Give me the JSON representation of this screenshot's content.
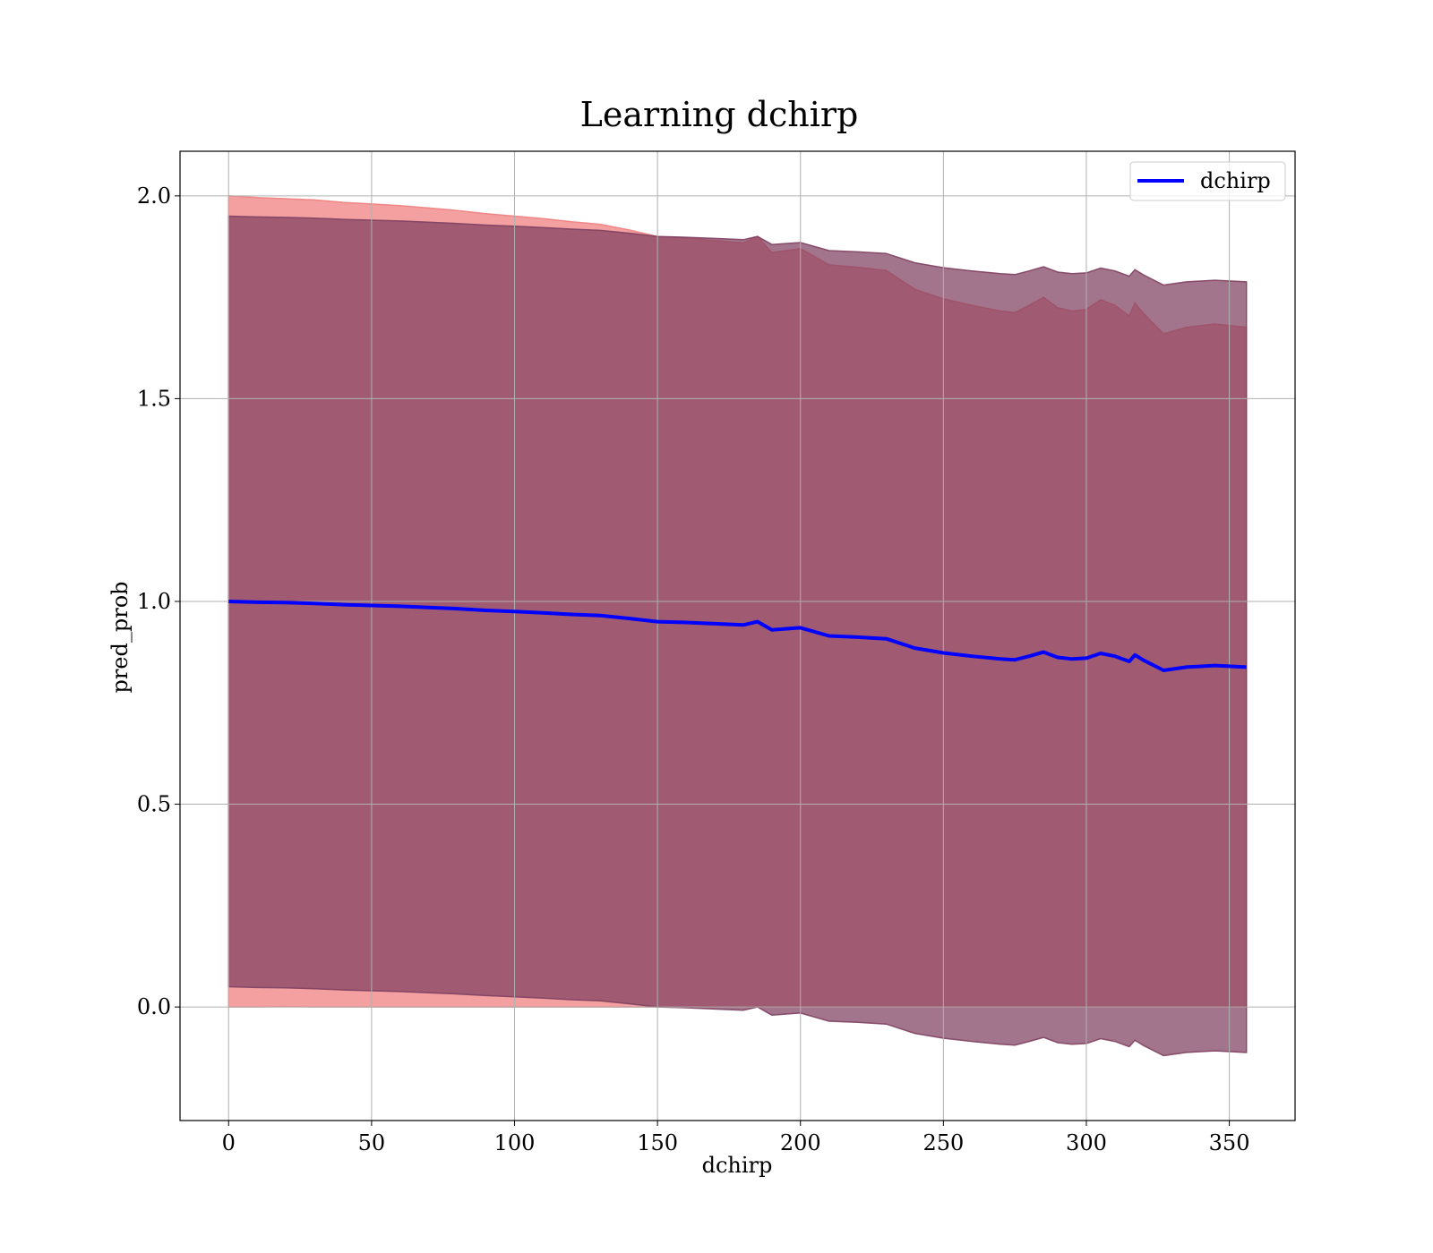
{
  "chart_data": {
    "type": "area",
    "title": "Learning dchirp",
    "xlabel": "dchirp",
    "ylabel": "pred_prob",
    "xlim": [
      -17,
      373
    ],
    "ylim": [
      -0.28,
      2.11
    ],
    "grid": true,
    "legend_position": "top-right",
    "xticks": [
      0,
      50,
      100,
      150,
      200,
      250,
      300,
      350
    ],
    "xtick_labels": [
      "0",
      "50",
      "100",
      "150",
      "200",
      "250",
      "300",
      "350"
    ],
    "yticks": [
      0.0,
      0.5,
      1.0,
      1.5,
      2.0
    ],
    "ytick_labels": [
      "0.0",
      "0.5",
      "1.0",
      "1.5",
      "2.0"
    ],
    "x": [
      0,
      10,
      20,
      30,
      40,
      50,
      60,
      70,
      80,
      90,
      100,
      110,
      120,
      130,
      140,
      150,
      160,
      170,
      180,
      185,
      190,
      200,
      210,
      220,
      230,
      240,
      250,
      260,
      270,
      275,
      280,
      285,
      290,
      295,
      300,
      305,
      310,
      315,
      317,
      320,
      327,
      335,
      345,
      356
    ],
    "series": [
      {
        "name": "dchirp",
        "color": "#0000ff",
        "values": [
          1.0,
          0.998,
          0.997,
          0.995,
          0.992,
          0.99,
          0.988,
          0.985,
          0.982,
          0.978,
          0.975,
          0.972,
          0.968,
          0.965,
          0.958,
          0.95,
          0.948,
          0.945,
          0.942,
          0.95,
          0.93,
          0.935,
          0.915,
          0.912,
          0.908,
          0.885,
          0.873,
          0.865,
          0.858,
          0.856,
          0.865,
          0.875,
          0.862,
          0.858,
          0.86,
          0.872,
          0.865,
          0.852,
          0.868,
          0.855,
          0.83,
          0.838,
          0.842,
          0.838
        ]
      }
    ],
    "bands": [
      {
        "color": "#f08080",
        "alpha": 0.75,
        "upper": [
          2.0,
          1.996,
          1.993,
          1.99,
          1.984,
          1.98,
          1.976,
          1.97,
          1.964,
          1.956,
          1.95,
          1.944,
          1.936,
          1.93,
          1.916,
          1.9,
          1.896,
          1.89,
          1.884,
          1.9,
          1.86,
          1.87,
          1.83,
          1.824,
          1.816,
          1.77,
          1.746,
          1.73,
          1.716,
          1.712,
          1.73,
          1.75,
          1.724,
          1.716,
          1.72,
          1.744,
          1.73,
          1.704,
          1.736,
          1.71,
          1.66,
          1.676,
          1.684,
          1.676
        ],
        "lower": [
          0.0,
          0.0,
          0.001,
          0.0,
          0.0,
          0.0,
          0.0,
          0.0,
          0.0,
          0.0,
          0.0,
          0.0,
          0.0,
          0.0,
          0.0,
          0.0,
          0.0,
          0.0,
          0.0,
          0.0,
          0.0,
          0.0,
          0.0,
          0.0,
          0.0,
          0.0,
          0.0,
          0.0,
          0.0,
          0.0,
          0.0,
          0.0,
          0.0,
          0.0,
          0.0,
          0.0,
          0.0,
          0.0,
          0.0,
          0.0,
          0.0,
          0.0,
          0.0,
          0.0
        ]
      },
      {
        "color": "#7f4060",
        "alpha": 0.72,
        "upper": [
          1.95,
          1.948,
          1.947,
          1.945,
          1.942,
          1.94,
          1.938,
          1.935,
          1.932,
          1.928,
          1.925,
          1.922,
          1.918,
          1.915,
          1.908,
          1.9,
          1.898,
          1.895,
          1.892,
          1.9,
          1.88,
          1.885,
          1.865,
          1.862,
          1.858,
          1.835,
          1.823,
          1.815,
          1.808,
          1.806,
          1.815,
          1.825,
          1.812,
          1.808,
          1.81,
          1.822,
          1.815,
          1.802,
          1.818,
          1.805,
          1.78,
          1.788,
          1.792,
          1.788
        ],
        "lower": [
          0.05,
          0.048,
          0.047,
          0.045,
          0.042,
          0.04,
          0.038,
          0.035,
          0.032,
          0.028,
          0.025,
          0.022,
          0.018,
          0.015,
          0.008,
          0.0,
          -0.002,
          -0.005,
          -0.008,
          0.0,
          -0.02,
          -0.015,
          -0.035,
          -0.038,
          -0.042,
          -0.065,
          -0.077,
          -0.085,
          -0.092,
          -0.094,
          -0.085,
          -0.075,
          -0.088,
          -0.092,
          -0.09,
          -0.078,
          -0.085,
          -0.098,
          -0.082,
          -0.095,
          -0.12,
          -0.112,
          -0.108,
          -0.112
        ]
      }
    ]
  }
}
